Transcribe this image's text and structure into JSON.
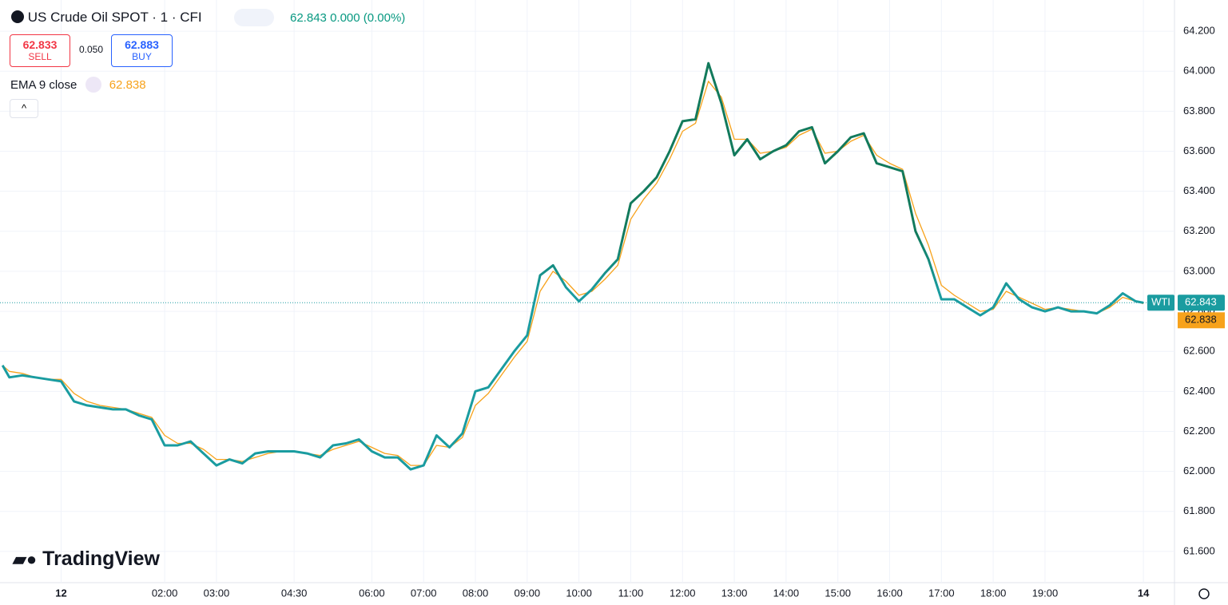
{
  "header": {
    "symbol": "US Crude Oil SPOT · 1 · CFI",
    "change": "0.000 (0.00%)",
    "sell_price": "62.833",
    "sell_label": "SELL",
    "spread": "0.050",
    "buy_price": "62.883",
    "buy_label": "BUY",
    "logo": "TradingView"
  },
  "chart_data": {
    "type": "line",
    "x": [
      -1.13,
      -1.0,
      -0.75,
      -0.5,
      -0.25,
      0,
      0.25,
      0.5,
      0.75,
      1,
      1.25,
      1.5,
      1.75,
      2,
      2.25,
      2.5,
      2.75,
      3,
      3.25,
      3.5,
      3.75,
      4,
      4.25,
      4.5,
      4.75,
      5,
      5.25,
      5.5,
      5.75,
      6,
      6.25,
      6.5,
      6.75,
      7,
      7.25,
      7.5,
      7.75,
      8,
      8.25,
      8.5,
      8.75,
      9,
      9.25,
      9.5,
      9.75,
      10,
      10.25,
      10.5,
      10.75,
      11,
      11.25,
      11.5,
      11.75,
      12,
      12.25,
      12.5,
      12.75,
      13,
      13.25,
      13.5,
      13.75,
      14,
      14.25,
      14.5,
      14.75,
      15,
      15.25,
      15.5,
      15.75,
      16,
      16.25,
      16.5,
      16.75,
      17,
      17.25,
      17.5,
      17.75,
      18,
      18.25,
      18.5,
      18.75,
      19,
      19.25,
      19.5,
      19.75,
      20,
      20.25,
      20.5,
      20.75,
      20.9
    ],
    "series": [
      {
        "name": "WTI",
        "color": "#1a9ca0",
        "values": [
          62.53,
          62.47,
          62.48,
          62.47,
          62.46,
          62.45,
          62.35,
          62.33,
          62.32,
          62.31,
          62.31,
          62.28,
          62.26,
          62.13,
          62.13,
          62.15,
          62.09,
          62.03,
          62.06,
          62.04,
          62.09,
          62.1,
          62.1,
          62.1,
          62.09,
          62.07,
          62.13,
          62.14,
          62.16,
          62.1,
          62.07,
          62.07,
          62.01,
          62.03,
          62.18,
          62.12,
          62.19,
          62.4,
          62.42,
          62.51,
          62.6,
          62.68,
          62.98,
          63.03,
          62.92,
          62.85,
          62.91,
          62.99,
          63.06,
          63.34,
          63.4,
          63.47,
          63.6,
          63.75,
          63.76,
          64.04,
          63.84,
          63.58,
          63.66,
          63.56,
          63.6,
          63.63,
          63.7,
          63.72,
          63.54,
          63.6,
          63.67,
          63.69,
          63.54,
          63.52,
          63.5,
          63.2,
          63.06,
          62.86,
          62.86,
          62.82,
          62.78,
          62.82,
          62.94,
          62.86,
          62.82,
          62.8,
          62.82,
          62.8,
          62.8,
          62.79,
          62.83,
          62.89,
          62.85,
          62.843
        ]
      },
      {
        "name": "EMA 9 close",
        "color": "#f7a21b",
        "values": [
          62.53,
          62.5,
          62.49,
          62.47,
          62.46,
          62.46,
          62.39,
          62.35,
          62.33,
          62.32,
          62.31,
          62.29,
          62.27,
          62.18,
          62.14,
          62.14,
          62.11,
          62.06,
          62.06,
          62.05,
          62.07,
          62.09,
          62.1,
          62.1,
          62.09,
          62.08,
          62.11,
          62.13,
          62.15,
          62.12,
          62.09,
          62.08,
          62.03,
          62.03,
          62.13,
          62.12,
          62.17,
          62.33,
          62.39,
          62.48,
          62.57,
          62.65,
          62.9,
          63.0,
          62.95,
          62.88,
          62.9,
          62.96,
          63.03,
          63.26,
          63.36,
          63.44,
          63.56,
          63.7,
          63.74,
          63.95,
          63.87,
          63.66,
          63.66,
          63.59,
          63.6,
          63.62,
          63.68,
          63.71,
          63.59,
          63.6,
          63.65,
          63.68,
          63.58,
          63.54,
          63.51,
          63.29,
          63.13,
          62.93,
          62.88,
          62.84,
          62.8,
          62.81,
          62.9,
          62.87,
          62.84,
          62.81,
          62.82,
          62.81,
          62.8,
          62.79,
          62.82,
          62.87,
          62.85,
          62.838
        ]
      }
    ],
    "xlim": [
      -1.18,
      21.5
    ],
    "xticks": [
      {
        "value": 0,
        "label": "12"
      },
      {
        "value": 2,
        "label": "02:00"
      },
      {
        "value": 3,
        "label": "03:00"
      },
      {
        "value": 4.5,
        "label": "04:30"
      },
      {
        "value": 6,
        "label": "06:00"
      },
      {
        "value": 7,
        "label": "07:00"
      },
      {
        "value": 8,
        "label": "08:00"
      },
      {
        "value": 9,
        "label": "09:00"
      },
      {
        "value": 10,
        "label": "10:00"
      },
      {
        "value": 11,
        "label": "11:00"
      },
      {
        "value": 12,
        "label": "12:00"
      },
      {
        "value": 13,
        "label": "13:00"
      },
      {
        "value": 14,
        "label": "14:00"
      },
      {
        "value": 15,
        "label": "15:00"
      },
      {
        "value": 16,
        "label": "16:00"
      },
      {
        "value": 17,
        "label": "17:00"
      },
      {
        "value": 18,
        "label": "18:00"
      },
      {
        "value": 19,
        "label": "19:00"
      },
      {
        "value": 20.9,
        "label": "14"
      }
    ],
    "ylim": [
      61.444,
      64.356
    ],
    "yticks": [
      {
        "value": 61.6,
        "label": "61.600"
      },
      {
        "value": 61.8,
        "label": "61.800"
      },
      {
        "value": 62,
        "label": "62.000"
      },
      {
        "value": 62.2,
        "label": "62.200"
      },
      {
        "value": 62.4,
        "label": "62.400"
      },
      {
        "value": 62.6,
        "label": "62.600"
      },
      {
        "value": 62.8,
        "label": "62.800"
      },
      {
        "value": 63,
        "label": "63.000"
      },
      {
        "value": 63.2,
        "label": "63.200"
      },
      {
        "value": 63.4,
        "label": "63.400"
      },
      {
        "value": 63.6,
        "label": "63.600"
      },
      {
        "value": 63.8,
        "label": "63.800"
      },
      {
        "value": 64,
        "label": "64.000"
      },
      {
        "value": 64.2,
        "label": "64.200"
      }
    ],
    "grid": true
  }
}
